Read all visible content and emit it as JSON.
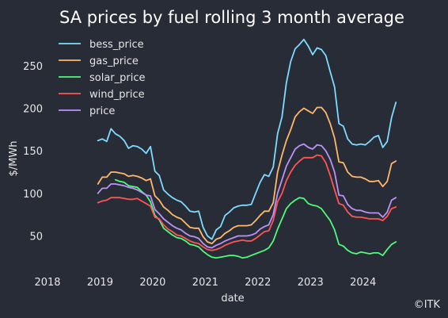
{
  "chart_data": {
    "type": "line",
    "title": "SA prices by fuel rolling 3 month average",
    "xlabel": "date",
    "ylabel": "$/MWh",
    "x_ticks": [
      "2018",
      "2019",
      "2020",
      "2021",
      "2022",
      "2023",
      "2024"
    ],
    "y_ticks": [
      50,
      100,
      150,
      200,
      250
    ],
    "xlim": [
      "2018-01-01",
      "2024-09-01"
    ],
    "ylim": [
      15,
      290
    ],
    "grid": false,
    "legend_position": "top-left",
    "credit": "©ITK",
    "x": [
      "2018-12",
      "2019-01",
      "2019-02",
      "2019-03",
      "2019-04",
      "2019-05",
      "2019-06",
      "2019-07",
      "2019-08",
      "2019-09",
      "2019-10",
      "2019-11",
      "2019-12",
      "2020-01",
      "2020-02",
      "2020-03",
      "2020-04",
      "2020-05",
      "2020-06",
      "2020-07",
      "2020-08",
      "2020-09",
      "2020-10",
      "2020-11",
      "2020-12",
      "2021-01",
      "2021-02",
      "2021-03",
      "2021-04",
      "2021-05",
      "2021-06",
      "2021-07",
      "2021-08",
      "2021-09",
      "2021-10",
      "2021-11",
      "2021-12",
      "2022-01",
      "2022-02",
      "2022-03",
      "2022-04",
      "2022-05",
      "2022-06",
      "2022-07",
      "2022-08",
      "2022-09",
      "2022-10",
      "2022-11",
      "2022-12",
      "2023-01",
      "2023-02",
      "2023-03",
      "2023-04",
      "2023-05",
      "2023-06",
      "2023-07",
      "2023-08",
      "2023-09",
      "2023-10",
      "2023-11",
      "2023-12",
      "2024-01",
      "2024-02",
      "2024-03",
      "2024-04",
      "2024-05",
      "2024-06",
      "2024-07",
      "2024-08"
    ],
    "series": [
      {
        "name": "bess_price",
        "color": "#7fdbff",
        "values": [
          162,
          164,
          161,
          176,
          170,
          167,
          162,
          153,
          156,
          155,
          152,
          147,
          155,
          126,
          121,
          104,
          99,
          95,
          92,
          90,
          85,
          79,
          78,
          79,
          60,
          50,
          46,
          57,
          61,
          74,
          78,
          83,
          85,
          86,
          86,
          87,
          100,
          113,
          122,
          120,
          131,
          170,
          190,
          230,
          255,
          270,
          275,
          281,
          273,
          263,
          271,
          269,
          262,
          243,
          225,
          182,
          179,
          164,
          158,
          157,
          158,
          157,
          161,
          166,
          168,
          154,
          161,
          189,
          207
        ]
      },
      {
        "name": "gas_price",
        "color": "#ffb86c",
        "values": [
          111,
          119,
          119,
          125,
          125,
          124,
          123,
          120,
          121,
          120,
          118,
          115,
          117,
          97,
          92,
          84,
          80,
          75,
          72,
          70,
          65,
          60,
          59,
          59,
          49,
          43,
          41,
          46,
          48,
          53,
          56,
          60,
          62,
          62,
          62,
          63,
          68,
          74,
          79,
          79,
          89,
          125,
          145,
          162,
          175,
          190,
          196,
          200,
          197,
          194,
          201,
          201,
          195,
          182,
          165,
          137,
          136,
          125,
          120,
          119,
          119,
          117,
          114,
          114,
          115,
          108,
          114,
          135,
          138
        ]
      },
      {
        "name": "solar_price",
        "color": "#50fa7b",
        "values": [
          null,
          null,
          null,
          null,
          116,
          114,
          113,
          109,
          108,
          107,
          102,
          98,
          90,
          74,
          69,
          59,
          55,
          51,
          48,
          47,
          44,
          40,
          39,
          37,
          32,
          28,
          25,
          24,
          25,
          26,
          27,
          27,
          26,
          24,
          25,
          27,
          29,
          31,
          33,
          36,
          44,
          58,
          70,
          82,
          88,
          92,
          95,
          94,
          88,
          86,
          85,
          82,
          75,
          68,
          57,
          40,
          38,
          33,
          30,
          29,
          31,
          30,
          29,
          30,
          30,
          27,
          34,
          40,
          43
        ]
      },
      {
        "name": "wind_price",
        "color": "#ff5555",
        "values": [
          89,
          91,
          92,
          95,
          95,
          95,
          94,
          93,
          93,
          94,
          91,
          88,
          85,
          72,
          70,
          63,
          58,
          55,
          51,
          50,
          47,
          44,
          42,
          41,
          37,
          34,
          33,
          34,
          36,
          39,
          41,
          43,
          44,
          45,
          44,
          44,
          47,
          51,
          55,
          56,
          68,
          90,
          100,
          115,
          125,
          133,
          138,
          142,
          142,
          142,
          145,
          144,
          136,
          121,
          104,
          88,
          86,
          78,
          73,
          72,
          72,
          71,
          70,
          70,
          70,
          68,
          73,
          82,
          84
        ]
      },
      {
        "name": "price",
        "color": "#bd93f9",
        "values": [
          100,
          106,
          106,
          111,
          111,
          110,
          109,
          107,
          106,
          104,
          101,
          98,
          97,
          81,
          76,
          70,
          66,
          62,
          59,
          57,
          53,
          50,
          49,
          47,
          41,
          37,
          36,
          39,
          41,
          44,
          46,
          48,
          50,
          50,
          50,
          51,
          53,
          58,
          61,
          63,
          75,
          100,
          116,
          132,
          142,
          152,
          156,
          158,
          154,
          152,
          157,
          156,
          150,
          140,
          125,
          98,
          97,
          87,
          82,
          80,
          80,
          78,
          77,
          77,
          77,
          72,
          78,
          92,
          95
        ]
      }
    ]
  }
}
